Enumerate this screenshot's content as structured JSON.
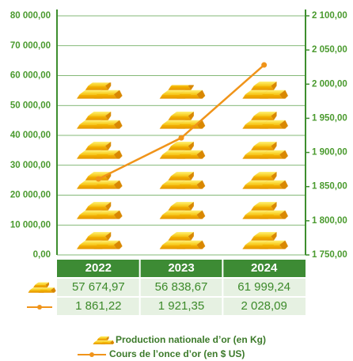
{
  "chart_data": {
    "type": "bar",
    "categories": [
      "2022",
      "2023",
      "2024"
    ],
    "series": [
      {
        "name": "Production nationale d’or (en Kg)",
        "color": "#f2b705",
        "type": "bar",
        "values": [
          57674.97,
          56838.67,
          61999.24
        ],
        "value_labels": [
          "57 674,97",
          "56 838,67",
          "61 999,24"
        ]
      },
      {
        "name": "Cours de l’once d’or (en $ US)",
        "color": "#f0941a",
        "type": "line",
        "axis": "y2",
        "values": [
          1861.22,
          1921.35,
          2028.09
        ],
        "value_labels": [
          "1 861,22",
          "1 921,35",
          "2 028,09"
        ]
      }
    ],
    "ylim": [
      0,
      80000
    ],
    "yticks": [
      {
        "value": 0,
        "label": "0,00"
      },
      {
        "value": 10000,
        "label": "10 000,00"
      },
      {
        "value": 20000,
        "label": "20 000,00"
      },
      {
        "value": 30000,
        "label": "30 000,00"
      },
      {
        "value": 40000,
        "label": "40 000,00"
      },
      {
        "value": 50000,
        "label": "50 000,00"
      },
      {
        "value": 60000,
        "label": "60 000,00"
      },
      {
        "value": 70000,
        "label": "70 000,00"
      },
      {
        "value": 80000,
        "label": "80 000,00"
      }
    ],
    "y2lim": [
      1750,
      2100
    ],
    "y2ticks": [
      {
        "value": 1750,
        "label": "1 750,00"
      },
      {
        "value": 1800,
        "label": "1 800,00"
      },
      {
        "value": 1850,
        "label": "1 850,00"
      },
      {
        "value": 1900,
        "label": "1 900,00"
      },
      {
        "value": 1950,
        "label": "1 950,00"
      },
      {
        "value": 2000,
        "label": "2 000,00"
      },
      {
        "value": 2050,
        "label": "2 050,00"
      },
      {
        "value": 2100,
        "label": "2 100,00"
      }
    ],
    "grid": true
  }
}
